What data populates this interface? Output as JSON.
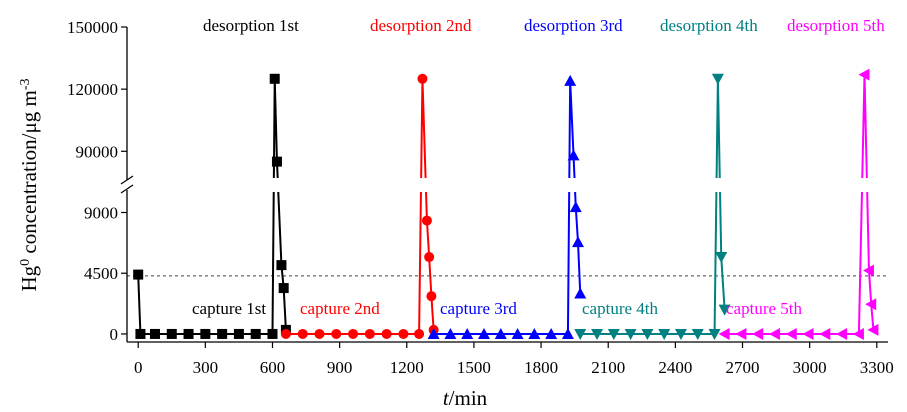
{
  "chart_data": {
    "type": "line",
    "xlabel": "t/min",
    "ylabel": "Hg0 concentration/μg m-3",
    "xlim": [
      -50,
      3350
    ],
    "x_ticks": [
      0,
      300,
      600,
      900,
      1200,
      1500,
      1800,
      2100,
      2400,
      2700,
      3000,
      3300
    ],
    "y_axis_break": {
      "lower_range": [
        -300,
        10000
      ],
      "upper_range": [
        80000,
        150000
      ]
    },
    "y_ticks": [
      0,
      4500,
      9000,
      90000,
      120000,
      150000
    ],
    "reference_line": {
      "y": 4300,
      "style": "dashed"
    },
    "series": [
      {
        "color": "#000000",
        "marker": "square",
        "x": [
          0,
          10,
          75,
          150,
          225,
          300,
          375,
          450,
          525,
          600,
          610,
          620,
          640,
          650,
          660
        ],
        "y": [
          4400,
          0,
          0,
          0,
          0,
          0,
          0,
          0,
          0,
          0,
          125000,
          85000,
          5100,
          3400,
          300
        ]
      },
      {
        "color": "#ff0000",
        "marker": "circle",
        "x": [
          660,
          735,
          810,
          885,
          960,
          1035,
          1110,
          1185,
          1255,
          1270,
          1290,
          1300,
          1310,
          1320
        ],
        "y": [
          0,
          0,
          0,
          0,
          0,
          0,
          0,
          0,
          0,
          125000,
          8400,
          5700,
          2800,
          300
        ]
      },
      {
        "color": "#0000ff",
        "marker": "triangle-up",
        "x": [
          1320,
          1395,
          1470,
          1545,
          1620,
          1695,
          1770,
          1845,
          1920,
          1930,
          1945,
          1955,
          1965,
          1975
        ],
        "y": [
          0,
          0,
          0,
          0,
          0,
          0,
          0,
          0,
          0,
          124000,
          88000,
          9400,
          6800,
          3000
        ]
      },
      {
        "color": "#008080",
        "marker": "triangle-down",
        "x": [
          1975,
          2050,
          2125,
          2200,
          2275,
          2350,
          2425,
          2500,
          2575,
          2590,
          2605,
          2620
        ],
        "y": [
          0,
          0,
          0,
          0,
          0,
          0,
          0,
          0,
          0,
          125000,
          5700,
          1800
        ]
      },
      {
        "color": "#ff00ff",
        "marker": "triangle-left",
        "x": [
          2620,
          2695,
          2770,
          2845,
          2920,
          2995,
          3070,
          3145,
          3220,
          3245,
          3265,
          3275,
          3285
        ],
        "y": [
          0,
          0,
          0,
          0,
          0,
          0,
          0,
          0,
          0,
          127000,
          4700,
          2200,
          300
        ]
      }
    ],
    "annotations": [
      {
        "text": "desorption 1st",
        "color": "#000000"
      },
      {
        "text": "desorption 2nd",
        "color": "#ff0000"
      },
      {
        "text": "desorption 3rd",
        "color": "#0000ff"
      },
      {
        "text": "desorption 4th",
        "color": "#008080"
      },
      {
        "text": "desorption 5th",
        "color": "#ff00ff"
      },
      {
        "text": "capture 1st",
        "color": "#000000"
      },
      {
        "text": "capture 2nd",
        "color": "#ff0000"
      },
      {
        "text": "capture 3rd",
        "color": "#0000ff"
      },
      {
        "text": "capture 4th",
        "color": "#008080"
      },
      {
        "text": "capture 5th",
        "color": "#ff00ff"
      }
    ]
  }
}
